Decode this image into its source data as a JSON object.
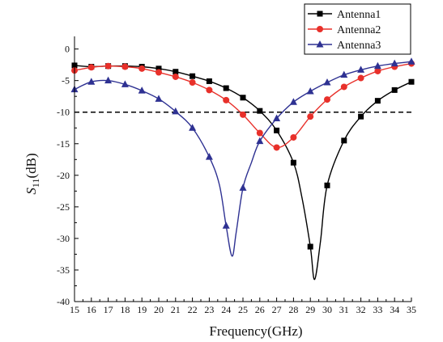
{
  "chart_data": {
    "type": "line",
    "title": "",
    "xlabel": "Frequency(GHz)",
    "ylabel_main": "S",
    "ylabel_sub": "11",
    "ylabel_unit": "(dB)",
    "xlim": [
      15,
      35
    ],
    "ylim": [
      -40,
      2
    ],
    "xticks": [
      15,
      16,
      17,
      18,
      19,
      20,
      21,
      22,
      23,
      24,
      25,
      26,
      27,
      28,
      29,
      30,
      31,
      32,
      33,
      34,
      35
    ],
    "yticks": [
      0,
      -5,
      -10,
      -15,
      -20,
      -25,
      -30,
      -35,
      -40
    ],
    "reference_line_y": -10,
    "grid": false,
    "legend_position": "top-right",
    "series": [
      {
        "name": "Antenna1",
        "color": "#000000",
        "marker": "square",
        "x": [
          15,
          16,
          17,
          18,
          19,
          20,
          21,
          22,
          23,
          24,
          25,
          26,
          27,
          28,
          29,
          30,
          31,
          32,
          33,
          34,
          35
        ],
        "y": [
          -2.6,
          -2.8,
          -2.7,
          -2.7,
          -2.8,
          -3.1,
          -3.6,
          -4.3,
          -5.1,
          -6.2,
          -7.7,
          -9.8,
          -12.9,
          -18.0,
          -31.3,
          -21.6,
          -14.5,
          -10.7,
          -8.2,
          -6.5,
          -5.2
        ],
        "curve": [
          [
            15,
            -2.6
          ],
          [
            16,
            -2.8
          ],
          [
            17,
            -2.7
          ],
          [
            18,
            -2.7
          ],
          [
            19,
            -2.8
          ],
          [
            20,
            -3.1
          ],
          [
            21,
            -3.6
          ],
          [
            22,
            -4.3
          ],
          [
            23,
            -5.1
          ],
          [
            24,
            -6.2
          ],
          [
            25,
            -7.7
          ],
          [
            26,
            -9.8
          ],
          [
            27,
            -12.9
          ],
          [
            28,
            -18.0
          ],
          [
            28.5,
            -23.5
          ],
          [
            29,
            -31.3
          ],
          [
            29.25,
            -36.5
          ],
          [
            29.6,
            -30.5
          ],
          [
            30,
            -21.6
          ],
          [
            31,
            -14.5
          ],
          [
            32,
            -10.7
          ],
          [
            33,
            -8.2
          ],
          [
            34,
            -6.5
          ],
          [
            35,
            -5.2
          ]
        ]
      },
      {
        "name": "Antenna2",
        "color": "#e8302a",
        "marker": "circle",
        "x": [
          15,
          16,
          17,
          18,
          19,
          20,
          21,
          22,
          23,
          24,
          25,
          26,
          27,
          28,
          29,
          30,
          31,
          32,
          33,
          34,
          35
        ],
        "y": [
          -3.4,
          -2.9,
          -2.7,
          -2.8,
          -3.1,
          -3.7,
          -4.4,
          -5.3,
          -6.5,
          -8.1,
          -10.4,
          -13.3,
          -15.6,
          -14.0,
          -10.7,
          -8.0,
          -6.0,
          -4.6,
          -3.5,
          -2.8,
          -2.3
        ],
        "curve": [
          [
            15,
            -3.4
          ],
          [
            16,
            -2.9
          ],
          [
            17,
            -2.7
          ],
          [
            18,
            -2.8
          ],
          [
            19,
            -3.1
          ],
          [
            20,
            -3.7
          ],
          [
            21,
            -4.4
          ],
          [
            22,
            -5.3
          ],
          [
            23,
            -6.5
          ],
          [
            24,
            -8.1
          ],
          [
            25,
            -10.4
          ],
          [
            26,
            -13.3
          ],
          [
            27,
            -15.6
          ],
          [
            28,
            -14.0
          ],
          [
            29,
            -10.7
          ],
          [
            30,
            -8.0
          ],
          [
            31,
            -6.0
          ],
          [
            32,
            -4.6
          ],
          [
            33,
            -3.5
          ],
          [
            34,
            -2.8
          ],
          [
            35,
            -2.3
          ]
        ]
      },
      {
        "name": "Antenna3",
        "color": "#2e3192",
        "marker": "triangle",
        "x": [
          15,
          16,
          17,
          18,
          19,
          20,
          21,
          22,
          23,
          24,
          25,
          26,
          27,
          28,
          29,
          30,
          31,
          32,
          33,
          34,
          35
        ],
        "y": [
          -6.4,
          -5.2,
          -5.0,
          -5.6,
          -6.6,
          -7.9,
          -9.9,
          -12.5,
          -17.1,
          -28.0,
          -22.0,
          -14.6,
          -11.0,
          -8.4,
          -6.7,
          -5.3,
          -4.1,
          -3.3,
          -2.7,
          -2.3,
          -2.0
        ],
        "curve": [
          [
            15,
            -6.4
          ],
          [
            16,
            -5.2
          ],
          [
            17,
            -5.0
          ],
          [
            18,
            -5.6
          ],
          [
            19,
            -6.6
          ],
          [
            20,
            -7.9
          ],
          [
            21,
            -9.9
          ],
          [
            22,
            -12.5
          ],
          [
            23,
            -17.1
          ],
          [
            23.6,
            -21.5
          ],
          [
            24,
            -28.0
          ],
          [
            24.35,
            -32.8
          ],
          [
            24.6,
            -29.0
          ],
          [
            25,
            -22.0
          ],
          [
            25.5,
            -18.0
          ],
          [
            26,
            -14.6
          ],
          [
            27,
            -11.0
          ],
          [
            28,
            -8.4
          ],
          [
            29,
            -6.7
          ],
          [
            30,
            -5.3
          ],
          [
            31,
            -4.1
          ],
          [
            32,
            -3.3
          ],
          [
            33,
            -2.7
          ],
          [
            34,
            -2.3
          ],
          [
            35,
            -2.0
          ]
        ]
      }
    ]
  }
}
